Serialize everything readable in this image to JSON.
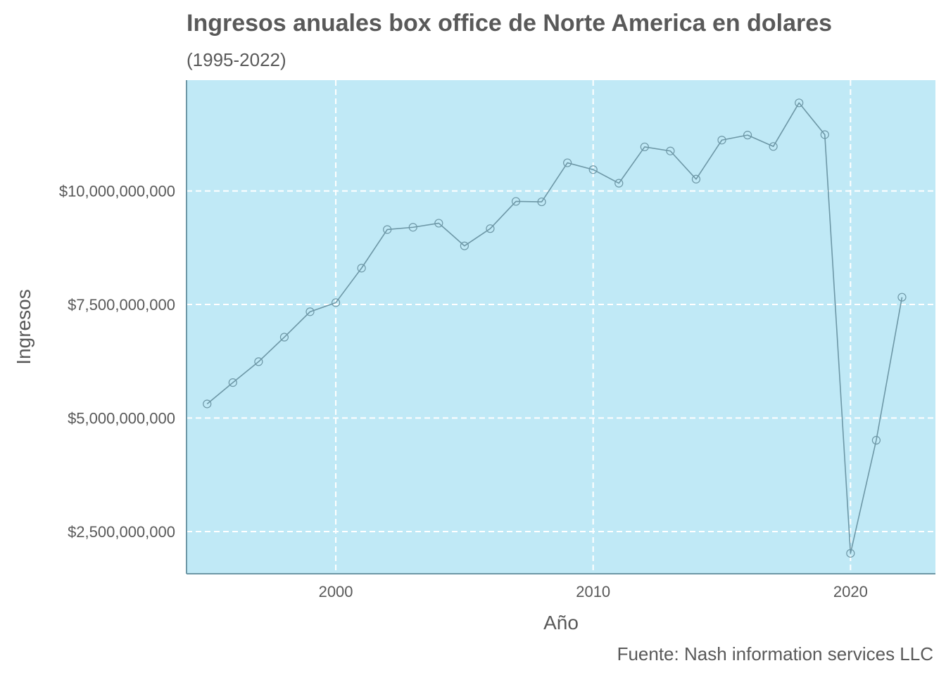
{
  "chart_data": {
    "type": "line",
    "title": "Ingresos anuales box office de Norte America en dolares",
    "subtitle": "(1995-2022)",
    "xlabel": "Año",
    "ylabel": "Ingresos",
    "caption": "Fuente: Nash information services LLC",
    "x": [
      1995,
      1996,
      1997,
      1998,
      1999,
      2000,
      2001,
      2002,
      2003,
      2004,
      2005,
      2006,
      2007,
      2008,
      2009,
      2010,
      2011,
      2012,
      2013,
      2014,
      2015,
      2016,
      2017,
      2018,
      2019,
      2020,
      2021,
      2022
    ],
    "values": [
      5310000000,
      5780000000,
      6240000000,
      6780000000,
      7340000000,
      7540000000,
      8300000000,
      9150000000,
      9200000000,
      9290000000,
      8790000000,
      9170000000,
      9770000000,
      9760000000,
      10620000000,
      10470000000,
      10170000000,
      10970000000,
      10880000000,
      10260000000,
      11120000000,
      11230000000,
      10980000000,
      11940000000,
      11240000000,
      2020000000,
      4510000000,
      7660000000
    ],
    "xlim": [
      1994.2,
      2023.3
    ],
    "ylim": [
      1570000000,
      12440000000
    ],
    "x_ticks": [
      2000,
      2010,
      2020
    ],
    "x_tick_labels": [
      "2000",
      "2010",
      "2020"
    ],
    "y_ticks": [
      2500000000,
      5000000000,
      7500000000,
      10000000000
    ],
    "y_tick_labels": [
      "$2,500,000,000",
      "$5,000,000,000",
      "$7,500,000,000",
      "$10,000,000,000"
    ],
    "grid": true,
    "legend": "none",
    "colors": {
      "panel_background": "#c0e9f6",
      "line": "#6d97a6",
      "point_stroke": "#6d97a6",
      "grid": "#ffffff",
      "axis": "#6d97a6",
      "text": "#595959"
    }
  }
}
